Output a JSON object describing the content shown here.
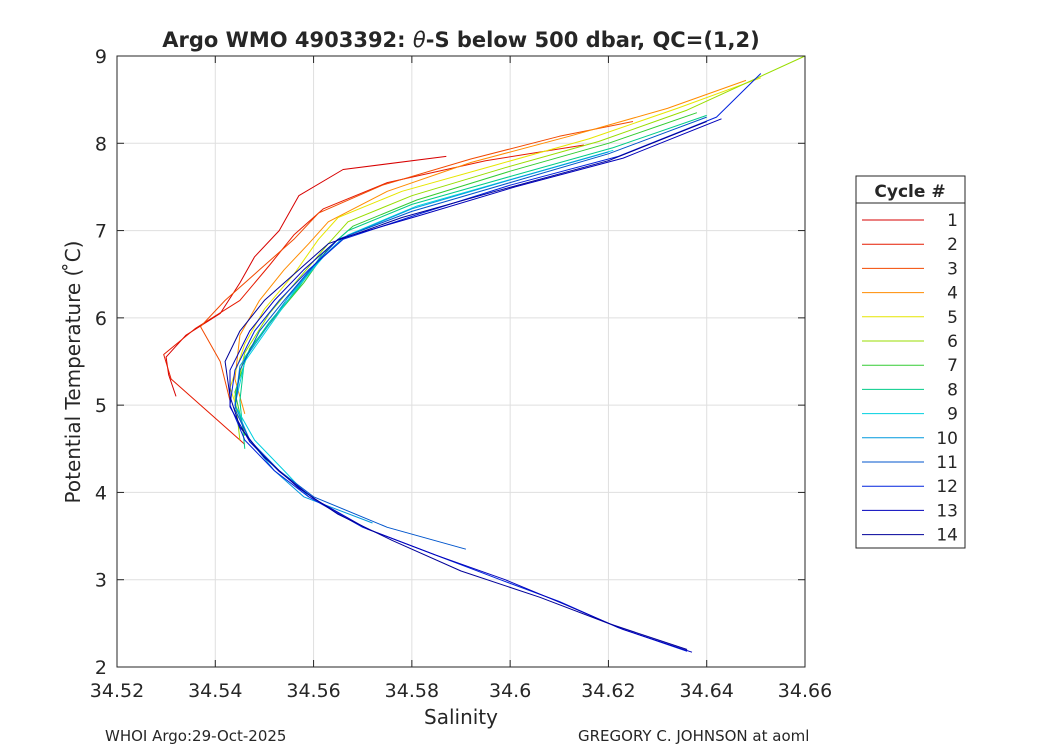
{
  "chart_data": {
    "type": "line",
    "title_prefix": "Argo WMO 4903392: ",
    "title_theta": "θ",
    "title_suffix": "-S below 500 dbar,  QC=(1,2)",
    "xlabel": "Salinity",
    "ylabel": "Potential Temperature ( ̊C)",
    "xlim": [
      34.52,
      34.66
    ],
    "ylim": [
      2,
      9
    ],
    "x_ticks": [
      34.52,
      34.54,
      34.56,
      34.58,
      34.6,
      34.62,
      34.64,
      34.66
    ],
    "x_tick_labels": [
      "34.52",
      "34.54",
      "34.56",
      "34.58",
      "34.6",
      "34.62",
      "34.64",
      "34.66"
    ],
    "y_ticks": [
      2,
      3,
      4,
      5,
      6,
      7,
      8,
      9
    ],
    "y_tick_labels": [
      "2",
      "3",
      "4",
      "5",
      "6",
      "7",
      "8",
      "9"
    ],
    "grid": true,
    "legend_title": "Cycle #",
    "legend_position": "outside-right",
    "series": [
      {
        "name": "1",
        "color": "#d70000",
        "points": [
          [
            34.532,
            5.1
          ],
          [
            34.5305,
            5.35
          ],
          [
            34.53,
            5.55
          ],
          [
            34.534,
            5.8
          ],
          [
            34.541,
            6.05
          ],
          [
            34.545,
            6.4
          ],
          [
            34.548,
            6.7
          ],
          [
            34.553,
            7.0
          ],
          [
            34.557,
            7.4
          ],
          [
            34.566,
            7.7
          ],
          [
            34.587,
            7.85
          ]
        ]
      },
      {
        "name": "2",
        "color": "#e61a00",
        "points": [
          [
            34.546,
            4.55
          ],
          [
            34.538,
            4.95
          ],
          [
            34.531,
            5.3
          ],
          [
            34.5295,
            5.58
          ],
          [
            34.536,
            5.88
          ],
          [
            34.545,
            6.2
          ],
          [
            34.551,
            6.6
          ],
          [
            34.556,
            6.95
          ],
          [
            34.562,
            7.25
          ],
          [
            34.575,
            7.55
          ],
          [
            34.595,
            7.8
          ],
          [
            34.615,
            7.98
          ]
        ]
      },
      {
        "name": "3",
        "color": "#f24a00",
        "points": [
          [
            34.543,
            5.05
          ],
          [
            34.541,
            5.5
          ],
          [
            34.537,
            5.9
          ],
          [
            34.542,
            6.2
          ],
          [
            34.549,
            6.55
          ],
          [
            34.556,
            6.9
          ],
          [
            34.561,
            7.2
          ],
          [
            34.574,
            7.52
          ],
          [
            34.592,
            7.82
          ],
          [
            34.61,
            8.08
          ],
          [
            34.625,
            8.25
          ]
        ]
      },
      {
        "name": "4",
        "color": "#ff8c00",
        "points": [
          [
            34.546,
            4.9
          ],
          [
            34.544,
            5.3
          ],
          [
            34.545,
            5.8
          ],
          [
            34.549,
            6.2
          ],
          [
            34.554,
            6.55
          ],
          [
            34.559,
            6.85
          ],
          [
            34.563,
            7.1
          ],
          [
            34.575,
            7.45
          ],
          [
            34.592,
            7.78
          ],
          [
            34.612,
            8.08
          ],
          [
            34.632,
            8.4
          ],
          [
            34.648,
            8.72
          ]
        ]
      },
      {
        "name": "5",
        "color": "#e6e600",
        "points": [
          [
            34.546,
            4.7
          ],
          [
            34.543,
            5.2
          ],
          [
            34.546,
            5.7
          ],
          [
            34.55,
            6.1
          ],
          [
            34.556,
            6.5
          ],
          [
            34.561,
            6.9
          ],
          [
            34.565,
            7.15
          ],
          [
            34.578,
            7.45
          ],
          [
            34.597,
            7.75
          ],
          [
            34.616,
            8.05
          ],
          [
            34.634,
            8.4
          ],
          [
            34.651,
            8.75
          ]
        ]
      },
      {
        "name": "6",
        "color": "#99dd00",
        "points": [
          [
            34.545,
            4.6
          ],
          [
            34.544,
            5.1
          ],
          [
            34.546,
            5.6
          ],
          [
            34.551,
            6.05
          ],
          [
            34.557,
            6.45
          ],
          [
            34.563,
            6.85
          ],
          [
            34.567,
            7.1
          ],
          [
            34.58,
            7.4
          ],
          [
            34.599,
            7.72
          ],
          [
            34.618,
            8.02
          ],
          [
            34.636,
            8.38
          ],
          [
            34.66,
            9.0
          ]
        ]
      },
      {
        "name": "7",
        "color": "#33cc33",
        "points": [
          [
            34.546,
            4.65
          ],
          [
            34.544,
            5.15
          ],
          [
            34.547,
            5.65
          ],
          [
            34.552,
            6.0
          ],
          [
            34.558,
            6.4
          ],
          [
            34.563,
            6.8
          ],
          [
            34.568,
            7.05
          ],
          [
            34.581,
            7.35
          ],
          [
            34.6,
            7.68
          ],
          [
            34.62,
            8.0
          ],
          [
            34.638,
            8.35
          ]
        ]
      },
      {
        "name": "8",
        "color": "#00cc88",
        "points": [
          [
            34.546,
            4.5
          ],
          [
            34.545,
            5.05
          ],
          [
            34.546,
            5.55
          ],
          [
            34.551,
            5.95
          ],
          [
            34.557,
            6.35
          ],
          [
            34.562,
            6.75
          ],
          [
            34.567,
            7.0
          ],
          [
            34.58,
            7.3
          ],
          [
            34.6,
            7.62
          ],
          [
            34.621,
            7.95
          ],
          [
            34.64,
            8.32
          ]
        ]
      },
      {
        "name": "9",
        "color": "#00d0e0",
        "points": [
          [
            34.559,
            3.95
          ],
          [
            34.554,
            4.25
          ],
          [
            34.548,
            4.6
          ],
          [
            34.544,
            5.0
          ],
          [
            34.546,
            5.5
          ],
          [
            34.551,
            5.9
          ],
          [
            34.556,
            6.3
          ],
          [
            34.562,
            6.7
          ],
          [
            34.567,
            6.95
          ],
          [
            34.581,
            7.28
          ],
          [
            34.601,
            7.6
          ],
          [
            34.621,
            7.92
          ]
        ]
      },
      {
        "name": "10",
        "color": "#0099dd",
        "points": [
          [
            34.572,
            3.65
          ],
          [
            34.558,
            3.95
          ],
          [
            34.552,
            4.25
          ],
          [
            34.547,
            4.6
          ],
          [
            34.544,
            5.0
          ],
          [
            34.545,
            5.45
          ],
          [
            34.55,
            5.85
          ],
          [
            34.555,
            6.25
          ],
          [
            34.561,
            6.65
          ],
          [
            34.566,
            6.92
          ],
          [
            34.58,
            7.25
          ],
          [
            34.6,
            7.58
          ],
          [
            34.62,
            7.9
          ]
        ]
      },
      {
        "name": "11",
        "color": "#0055cc",
        "points": [
          [
            34.591,
            3.35
          ],
          [
            34.575,
            3.6
          ],
          [
            34.56,
            3.95
          ],
          [
            34.553,
            4.25
          ],
          [
            34.547,
            4.6
          ],
          [
            34.544,
            4.95
          ],
          [
            34.545,
            5.4
          ],
          [
            34.549,
            5.85
          ],
          [
            34.554,
            6.2
          ],
          [
            34.56,
            6.6
          ],
          [
            34.565,
            6.9
          ],
          [
            34.58,
            7.22
          ],
          [
            34.6,
            7.55
          ],
          [
            34.62,
            7.88
          ],
          [
            34.64,
            8.3
          ]
        ]
      },
      {
        "name": "12",
        "color": "#0022dd",
        "points": [
          [
            34.636,
            2.18
          ],
          [
            34.622,
            2.45
          ],
          [
            34.61,
            2.75
          ],
          [
            34.598,
            3.0
          ],
          [
            34.584,
            3.3
          ],
          [
            34.57,
            3.6
          ],
          [
            34.559,
            3.95
          ],
          [
            34.552,
            4.25
          ],
          [
            34.546,
            4.6
          ],
          [
            34.543,
            5.0
          ],
          [
            34.544,
            5.4
          ],
          [
            34.548,
            5.85
          ],
          [
            34.553,
            6.2
          ],
          [
            34.559,
            6.55
          ],
          [
            34.566,
            6.9
          ],
          [
            34.582,
            7.2
          ],
          [
            34.6,
            7.52
          ],
          [
            34.622,
            7.85
          ],
          [
            34.642,
            8.3
          ],
          [
            34.651,
            8.8
          ]
        ]
      },
      {
        "name": "13",
        "color": "#0000bb",
        "points": [
          [
            34.637,
            2.17
          ],
          [
            34.623,
            2.43
          ],
          [
            34.611,
            2.72
          ],
          [
            34.599,
            3.0
          ],
          [
            34.585,
            3.28
          ],
          [
            34.571,
            3.58
          ],
          [
            34.56,
            3.93
          ],
          [
            34.553,
            4.24
          ],
          [
            34.547,
            4.58
          ],
          [
            34.543,
            4.98
          ],
          [
            34.543,
            5.4
          ],
          [
            34.547,
            5.85
          ],
          [
            34.552,
            6.2
          ],
          [
            34.558,
            6.55
          ],
          [
            34.565,
            6.9
          ],
          [
            34.582,
            7.18
          ],
          [
            34.601,
            7.5
          ],
          [
            34.623,
            7.83
          ],
          [
            34.643,
            8.28
          ]
        ]
      },
      {
        "name": "14",
        "color": "#000099",
        "points": [
          [
            34.636,
            2.2
          ],
          [
            34.62,
            2.5
          ],
          [
            34.606,
            2.8
          ],
          [
            34.59,
            3.1
          ],
          [
            34.576,
            3.45
          ],
          [
            34.565,
            3.75
          ],
          [
            34.557,
            4.05
          ],
          [
            34.55,
            4.4
          ],
          [
            34.545,
            4.75
          ],
          [
            34.543,
            5.1
          ],
          [
            34.542,
            5.5
          ],
          [
            34.545,
            5.85
          ],
          [
            34.55,
            6.2
          ],
          [
            34.556,
            6.5
          ],
          [
            34.563,
            6.85
          ],
          [
            34.578,
            7.15
          ],
          [
            34.597,
            7.45
          ],
          [
            34.62,
            7.8
          ],
          [
            34.64,
            8.25
          ]
        ]
      }
    ]
  },
  "footer": {
    "left": "WHOI Argo:29-Oct-2025",
    "right": "GREGORY C. JOHNSON at aoml"
  }
}
